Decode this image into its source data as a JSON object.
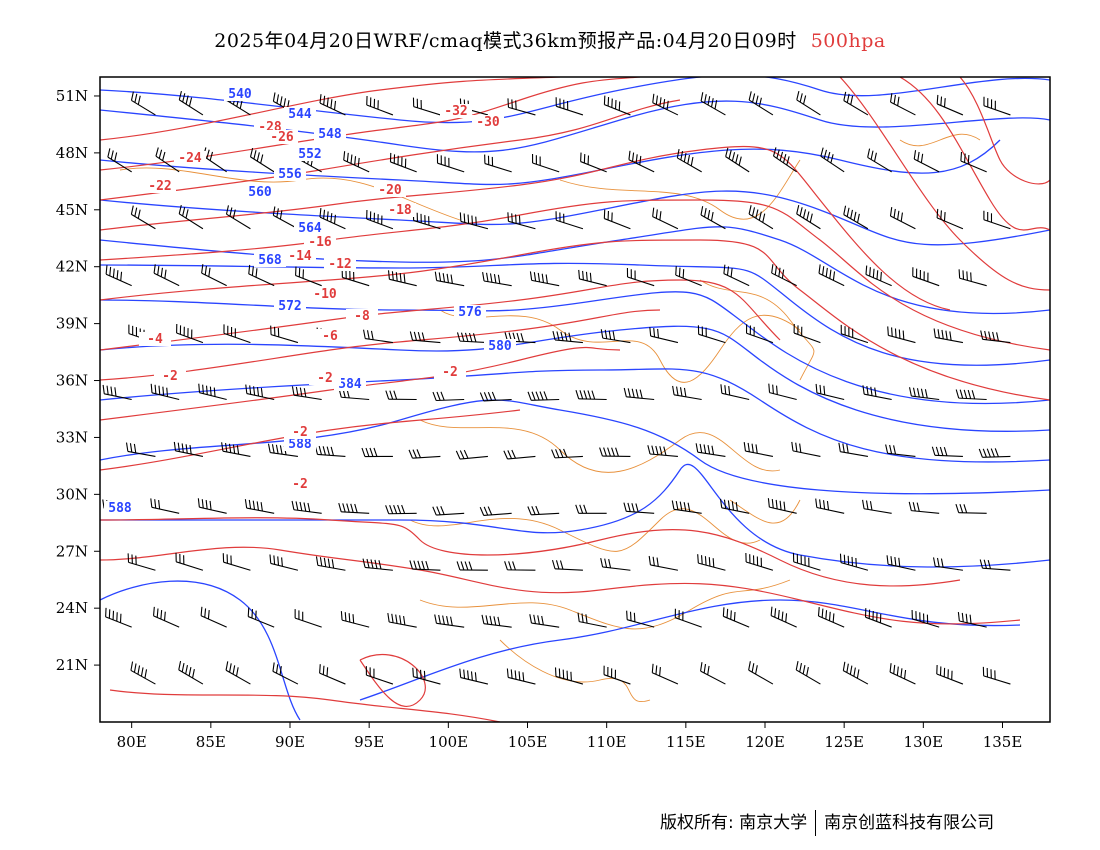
{
  "header": {
    "title": "2025年04月20日WRF/cmaq模式36km预报产品:04月20日09时",
    "level": "500hpa",
    "level_color": "#e03c3c"
  },
  "map": {
    "lon_range": [
      78,
      138
    ],
    "lat_range": [
      18,
      52
    ],
    "x_ticks": [
      "80E",
      "85E",
      "90E",
      "95E",
      "100E",
      "105E",
      "110E",
      "115E",
      "120E",
      "125E",
      "130E",
      "135E"
    ],
    "y_ticks": [
      "51N",
      "48N",
      "45N",
      "42N",
      "39N",
      "36N",
      "33N",
      "30N",
      "27N",
      "24N",
      "21N"
    ],
    "layers": {
      "geopotential_height": {
        "color": "#2a45ff",
        "labels": [
          "540",
          "544",
          "548",
          "552",
          "556",
          "560",
          "564",
          "568",
          "572",
          "576",
          "580",
          "584",
          "588"
        ]
      },
      "temperature": {
        "color": "#e03c3c",
        "labels": [
          "-32",
          "-30",
          "-28",
          "-26",
          "-24",
          "-22",
          "-20",
          "-18",
          "-16",
          "-14",
          "-12",
          "-10",
          "-8",
          "-6",
          "-4",
          "-2"
        ]
      },
      "wind_barbs": {
        "color": "#000000"
      },
      "boundaries": {
        "color": "#e8913c"
      }
    }
  },
  "footer": {
    "left": "版权所有: 南京大学",
    "right": "南京创蓝科技有限公司"
  }
}
